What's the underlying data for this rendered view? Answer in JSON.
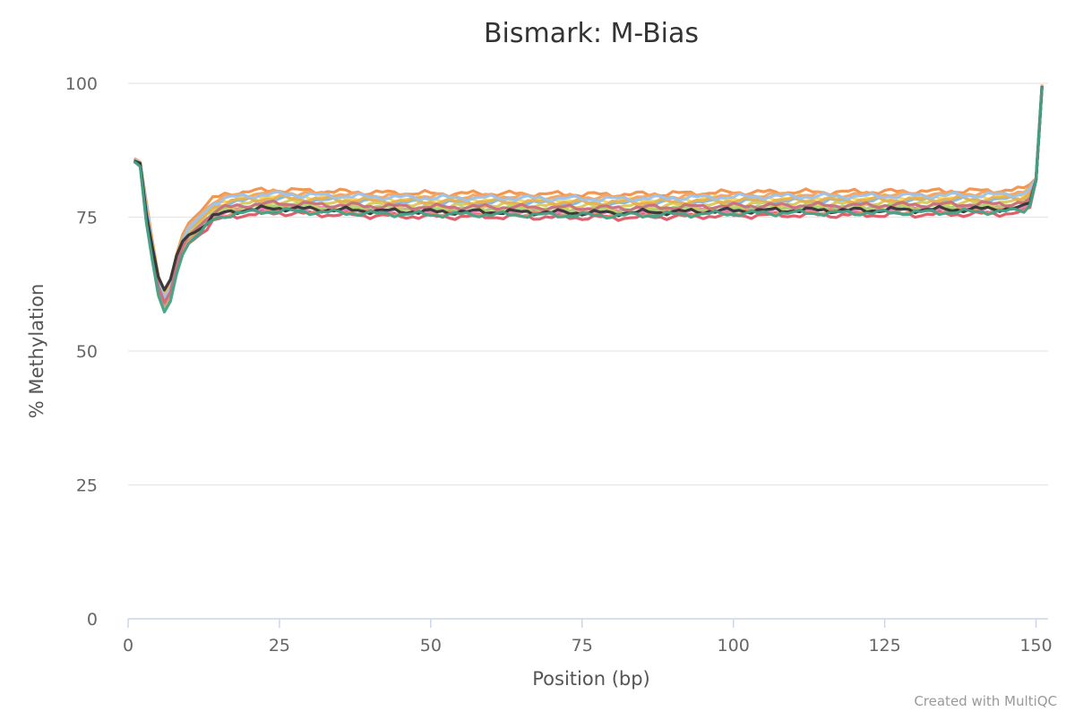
{
  "chart_data": {
    "type": "line",
    "title": "Bismark: M-Bias",
    "xlabel": "Position (bp)",
    "ylabel": "% Methylation",
    "xlim": [
      0,
      152
    ],
    "ylim": [
      0,
      100
    ],
    "x_ticks": [
      0,
      25,
      50,
      75,
      100,
      125,
      150
    ],
    "y_ticks": [
      0,
      25,
      50,
      75,
      100
    ],
    "grid": "horizontal",
    "legend": "none",
    "credit": "Created with MultiQC",
    "profile": {
      "x": [
        1,
        2,
        3,
        4,
        5,
        6,
        7,
        8,
        9,
        10,
        12,
        14,
        16,
        18,
        20,
        25,
        30,
        40,
        50,
        60,
        70,
        80,
        90,
        100,
        110,
        120,
        130,
        140,
        145,
        148,
        149,
        150,
        151
      ],
      "y": [
        85.6,
        84.8,
        75.5,
        68.5,
        62.0,
        59.0,
        61.0,
        66.0,
        69.5,
        71.5,
        73.5,
        75.8,
        76.6,
        77.0,
        77.2,
        77.5,
        77.3,
        77.0,
        76.8,
        76.8,
        76.7,
        76.6,
        76.8,
        77.0,
        77.1,
        77.1,
        77.2,
        77.3,
        77.4,
        77.6,
        78.5,
        82.0,
        99.5
      ]
    },
    "series": [
      {
        "color": "#e25563",
        "offset": -1.7,
        "dip_depth": 1.0,
        "phase": 0.3
      },
      {
        "color": "#f0914b",
        "offset": 2.6,
        "dip_depth": 0.9,
        "phase": 1.1
      },
      {
        "color": "#f5d35a",
        "offset": 1.5,
        "dip_depth": 0.85,
        "phase": 2.2
      },
      {
        "color": "#7db7e8",
        "offset": 0.9,
        "dip_depth": 1.05,
        "phase": 3.0
      },
      {
        "color": "#e57ab3",
        "offset": -0.6,
        "dip_depth": 1.0,
        "phase": 4.1
      },
      {
        "color": "#f7a35c",
        "offset": 2.1,
        "dip_depth": 0.95,
        "phase": 5.3
      },
      {
        "color": "#a9d46f",
        "offset": -0.2,
        "dip_depth": 1.1,
        "phase": 0.8
      },
      {
        "color": "#d9c95a",
        "offset": 0.4,
        "dip_depth": 0.9,
        "phase": 1.7
      },
      {
        "color": "#f28b6e",
        "offset": -1.1,
        "dip_depth": 1.0,
        "phase": 2.9
      },
      {
        "color": "#e8b04e",
        "offset": 1.1,
        "dip_depth": 0.8,
        "phase": 3.6
      },
      {
        "color": "#9ac3f0",
        "offset": 1.8,
        "dip_depth": 1.0,
        "phase": 4.6
      },
      {
        "color": "#c86f7f",
        "offset": 0.1,
        "dip_depth": 1.0,
        "phase": 5.7
      },
      {
        "color": "#333333",
        "offset": -0.8,
        "dip_depth": 0.65,
        "phase": 0.5
      },
      {
        "color": "#42a387",
        "offset": -1.3,
        "dip_depth": 1.15,
        "phase": 2.5
      }
    ]
  }
}
